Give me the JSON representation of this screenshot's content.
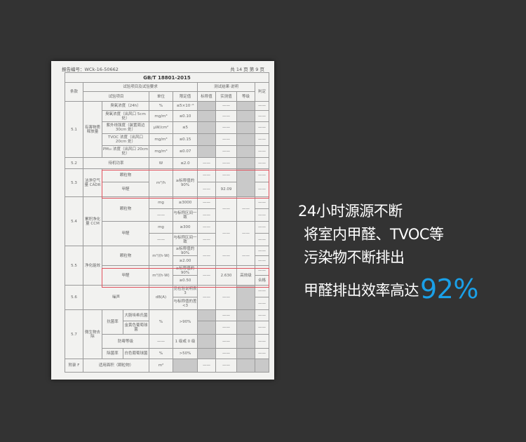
{
  "document": {
    "report_no": "报告编号：WCk-16-50662",
    "page_info": "共 14 页  第 9 页",
    "table": {
      "rows": [
        [
          {
            "t": "GB/T 18801-2015",
            "cs": 10,
            "title": true
          }
        ],
        [
          {
            "t": "条款",
            "rs": 2
          },
          {
            "t": "试验项目及试验要求",
            "cs": 5
          },
          {
            "t": "测试结果·说明",
            "cs": 3
          },
          {
            "t": "判定",
            "rs": 2
          }
        ],
        [
          {
            "t": "试验项目",
            "cs": 3
          },
          {
            "t": "单位"
          },
          {
            "t": "限定值"
          },
          {
            "t": "标称值"
          },
          {
            "t": "实测值"
          },
          {
            "t": "等级"
          }
        ],
        [
          {
            "t": "5.1",
            "rs": 5
          },
          {
            "t": "有害物质释放量",
            "rs": 5
          },
          {
            "t": "臭氧浓度（24h）",
            "cs": 2
          },
          {
            "t": "%"
          },
          {
            "t": "≤5×10⁻⁶"
          },
          {
            "t": "",
            "g": true
          },
          {
            "t": "——"
          },
          {
            "t": "",
            "g": true
          },
          {
            "t": "——"
          }
        ],
        [
          {
            "t": "臭氧浓度（出风口 5cm 处）",
            "cs": 2
          },
          {
            "t": "mg/m³"
          },
          {
            "t": "≤0.10"
          },
          {
            "t": "",
            "g": true
          },
          {
            "t": "——"
          },
          {
            "t": "",
            "g": true
          },
          {
            "t": "——"
          }
        ],
        [
          {
            "t": "紫外线强度（装置周边 30cm 处）",
            "cs": 2
          },
          {
            "t": "μW/cm²"
          },
          {
            "t": "≤5"
          },
          {
            "t": "",
            "g": true
          },
          {
            "t": "——"
          },
          {
            "t": "",
            "g": true
          },
          {
            "t": "——"
          }
        ],
        [
          {
            "t": "TVOC 浓度（出风口 20cm 处）",
            "cs": 2
          },
          {
            "t": "mg/m³"
          },
          {
            "t": "≤0.15"
          },
          {
            "t": "",
            "g": true
          },
          {
            "t": "——"
          },
          {
            "t": "",
            "g": true
          },
          {
            "t": "——"
          }
        ],
        [
          {
            "t": "PM₁₀ 浓度（出风口 20cm 处）",
            "cs": 2
          },
          {
            "t": "mg/m³"
          },
          {
            "t": "≤0.07"
          },
          {
            "t": "",
            "g": true
          },
          {
            "t": "——"
          },
          {
            "t": "",
            "g": true
          },
          {
            "t": "——"
          }
        ],
        [
          {
            "t": "5.2"
          },
          {
            "t": "待机功率",
            "cs": 3
          },
          {
            "t": "W"
          },
          {
            "t": "≤2.0"
          },
          {
            "t": "——"
          },
          {
            "t": "——"
          },
          {
            "t": "",
            "g": true
          },
          {
            "t": "——"
          }
        ],
        [
          {
            "t": "5.3",
            "rs": 2
          },
          {
            "t": "洁净空气量 CADR",
            "rs": 2
          },
          {
            "t": "颗粒物",
            "cs": 2
          },
          {
            "t": "m³/h",
            "rs": 2
          },
          {
            "t": "≥标称值的 90%",
            "rs": 2
          },
          {
            "t": "——"
          },
          {
            "t": "——"
          },
          {
            "t": "",
            "g": true,
            "rs": 2
          },
          {
            "t": "——"
          }
        ],
        [
          {
            "t": "甲醛",
            "cs": 2
          },
          {
            "t": "——"
          },
          {
            "t": "92.09"
          },
          {
            "t": "——"
          }
        ],
        [
          {
            "t": "5.4",
            "rs": 4
          },
          {
            "t": "累积净化量 CCM",
            "rs": 4
          },
          {
            "t": "颗粒物",
            "cs": 2,
            "rs": 2
          },
          {
            "t": "mg"
          },
          {
            "t": "≥3000"
          },
          {
            "t": "——"
          },
          {
            "t": "——",
            "rs": 2
          },
          {
            "t": "——",
            "rs": 2
          },
          {
            "t": "——"
          }
        ],
        [
          {
            "t": "——"
          },
          {
            "t": "与标称区间一致"
          },
          {
            "t": "——"
          },
          {
            "t": "——"
          }
        ],
        [
          {
            "t": "甲醛",
            "cs": 2,
            "rs": 2
          },
          {
            "t": "mg"
          },
          {
            "t": "≥300"
          },
          {
            "t": "——"
          },
          {
            "t": "——",
            "rs": 2
          },
          {
            "t": "——",
            "rs": 2
          },
          {
            "t": "——"
          }
        ],
        [
          {
            "t": "——"
          },
          {
            "t": "与标称区间一致"
          },
          {
            "t": "——"
          },
          {
            "t": "——"
          }
        ],
        [
          {
            "t": "5.5",
            "rs": 4
          },
          {
            "t": "净化能效",
            "rs": 4
          },
          {
            "t": "颗粒物",
            "cs": 2,
            "rs": 2
          },
          {
            "t": "m³/(h·W)",
            "rs": 2
          },
          {
            "t": "≥标称值的 90%"
          },
          {
            "t": "——",
            "rs": 2
          },
          {
            "t": "——",
            "rs": 2
          },
          {
            "t": "——",
            "rs": 2
          },
          {
            "t": "——"
          }
        ],
        [
          {
            "t": "≥2.00"
          },
          {
            "t": "——"
          }
        ],
        [
          {
            "t": "甲醛",
            "cs": 2,
            "rs": 2
          },
          {
            "t": "m³/(h·W)",
            "rs": 2
          },
          {
            "t": "≥标称值的 90%"
          },
          {
            "t": "——",
            "rs": 2
          },
          {
            "t": "2.630",
            "rs": 2
          },
          {
            "t": "高效级",
            "rs": 2
          },
          {
            "t": "——"
          }
        ],
        [
          {
            "t": "≥0.50"
          },
          {
            "t": "合格"
          }
        ],
        [
          {
            "t": "5.6",
            "rs": 2
          },
          {
            "t": "噪声",
            "cs": 3,
            "rs": 2
          },
          {
            "t": "dB(A)",
            "rs": 2
          },
          {
            "t": "见检验说明表 3"
          },
          {
            "t": "——",
            "rs": 2
          },
          {
            "t": "——",
            "rs": 2
          },
          {
            "t": "",
            "g": true,
            "rs": 2
          },
          {
            "t": "——"
          }
        ],
        [
          {
            "t": "与标称值的差<3"
          },
          {
            "t": "——"
          }
        ],
        [
          {
            "t": "5.7",
            "rs": 4
          },
          {
            "t": "微生物去除",
            "rs": 4
          },
          {
            "t": "抗菌率",
            "rs": 2
          },
          {
            "t": "大肠埃希氏菌"
          },
          {
            "t": "%",
            "rs": 2
          },
          {
            "t": ">90%",
            "rs": 2
          },
          {
            "t": "",
            "g": true
          },
          {
            "t": "——"
          },
          {
            "t": "",
            "g": true
          },
          {
            "t": "——"
          }
        ],
        [
          {
            "t": "金黄色葡萄球菌"
          },
          {
            "t": "",
            "g": true
          },
          {
            "t": "——"
          },
          {
            "t": "",
            "g": true
          },
          {
            "t": "——"
          }
        ],
        [
          {
            "t": "防霉等级",
            "cs": 2
          },
          {
            "t": "——"
          },
          {
            "t": "1 级或 0 级"
          },
          {
            "t": "",
            "g": true
          },
          {
            "t": "——"
          },
          {
            "t": "",
            "g": true
          },
          {
            "t": "——"
          }
        ],
        [
          {
            "t": "除菌率"
          },
          {
            "t": "白色葡萄球菌"
          },
          {
            "t": "%"
          },
          {
            "t": ">50%"
          },
          {
            "t": "",
            "g": true
          },
          {
            "t": "——"
          },
          {
            "t": "",
            "g": true
          },
          {
            "t": "——"
          }
        ],
        [
          {
            "t": "附录 F"
          },
          {
            "t": "适用面积（颗粒物）",
            "cs": 3
          },
          {
            "t": "m²"
          },
          {
            "t": "",
            "g": true
          },
          {
            "t": "——"
          },
          {
            "t": "——"
          },
          {
            "t": "",
            "g": true
          },
          {
            "t": "",
            "g": true
          }
        ]
      ]
    },
    "highlight_color": "#e0525e"
  },
  "slogan": {
    "line1": "24小时源源不断",
    "line2": "将室内甲醛、TVOC等",
    "line3": "污染物不断排出",
    "line4": "甲醛排出效率高达",
    "percent": "92%",
    "percent_color": "#1aa0e8"
  }
}
